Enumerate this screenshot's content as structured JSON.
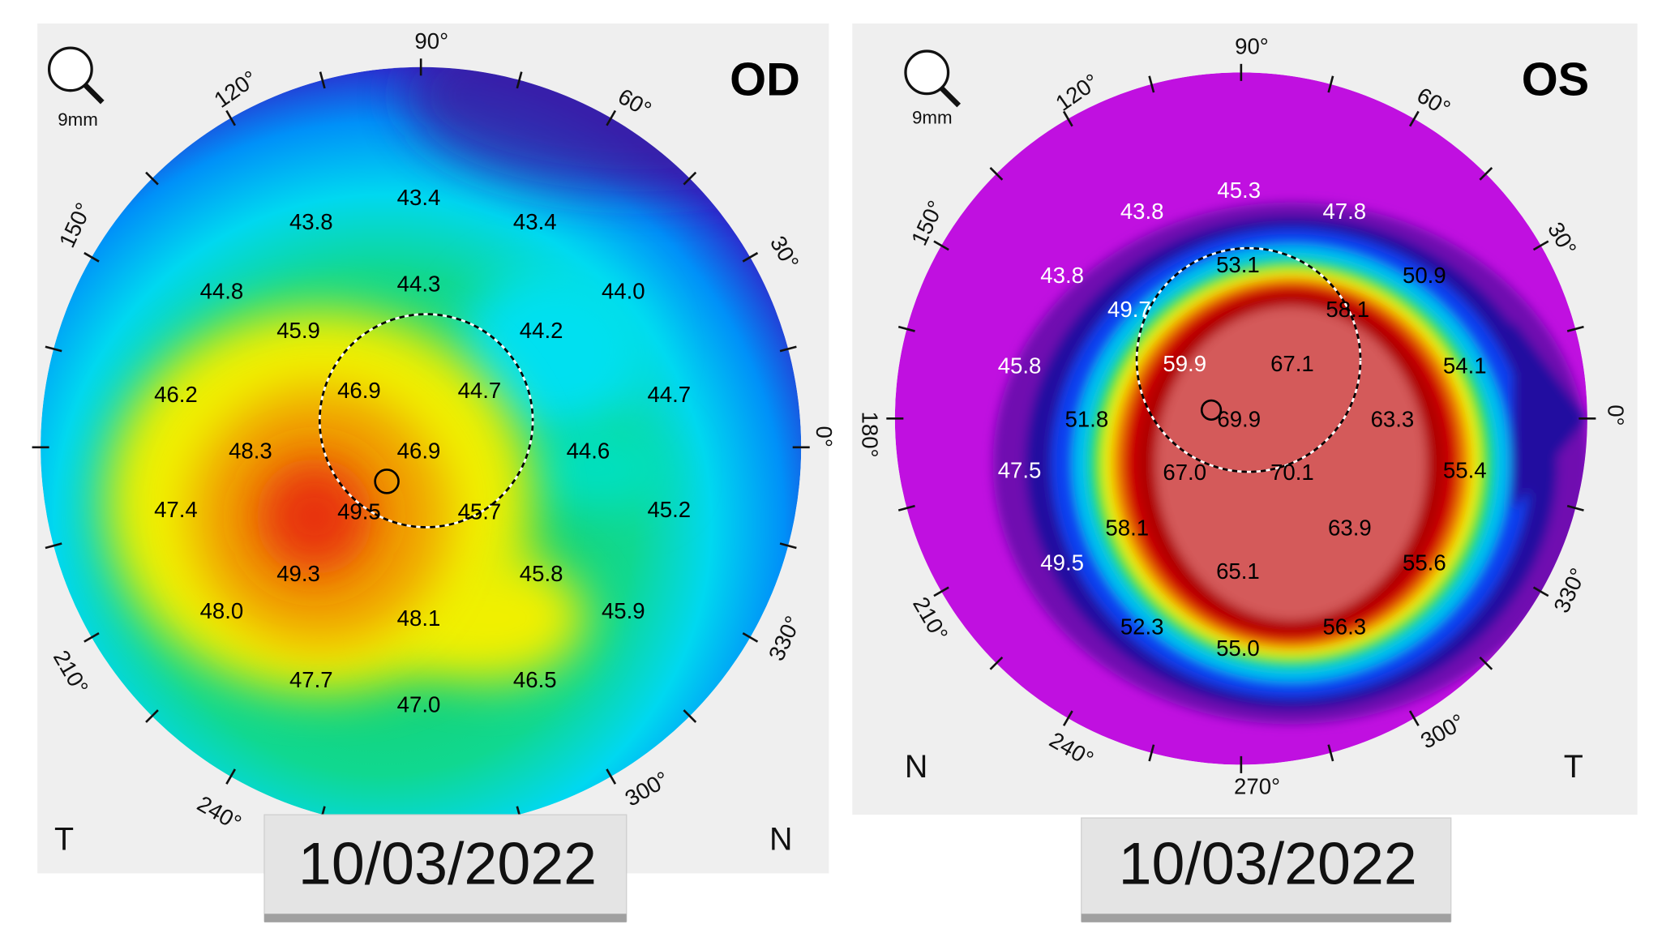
{
  "chart_data": [
    {
      "type": "heatmap",
      "eye": "OD",
      "zoom_label": "9mm",
      "corner_left": "T",
      "corner_right": "N",
      "date": "10/03/2022",
      "angle_labels": [
        "90°",
        "120°",
        "150°",
        "210°",
        "240°",
        "300°",
        "330°",
        "0°",
        "30°",
        "60°"
      ],
      "values": [
        43.8,
        43.4,
        43.4,
        44.3,
        44.8,
        44.0,
        45.9,
        44.2,
        46.2,
        46.9,
        44.7,
        44.7,
        48.3,
        46.9,
        44.6,
        47.4,
        49.5,
        45.7,
        45.2,
        49.3,
        45.8,
        48.0,
        48.1,
        45.9,
        47.7,
        47.0,
        46.5
      ],
      "colors": {
        "low": "#2a1aa0",
        "mid_low": "#00d8f0",
        "mid": "#20c840",
        "mid_high": "#f0f000",
        "high": "#e83010"
      }
    },
    {
      "type": "heatmap",
      "eye": "OS",
      "zoom_label": "9mm",
      "corner_left": "N",
      "corner_right": "T",
      "date": "10/03/2022",
      "angle_labels": [
        "90°",
        "120°",
        "150°",
        "180°",
        "210°",
        "240°",
        "270°",
        "300°",
        "330°",
        "0°",
        "30°",
        "60°"
      ],
      "values": [
        45.3,
        43.8,
        47.8,
        43.8,
        53.1,
        50.9,
        49.7,
        58.1,
        45.8,
        59.9,
        67.1,
        54.1,
        51.8,
        69.9,
        63.3,
        47.5,
        67.0,
        70.1,
        55.4,
        58.1,
        63.9,
        49.5,
        65.1,
        55.6,
        52.3,
        55.0,
        56.3
      ],
      "colors": {
        "outer": "#c010e0",
        "ring": "#1040f0",
        "peak": "#d45a5a"
      }
    }
  ]
}
